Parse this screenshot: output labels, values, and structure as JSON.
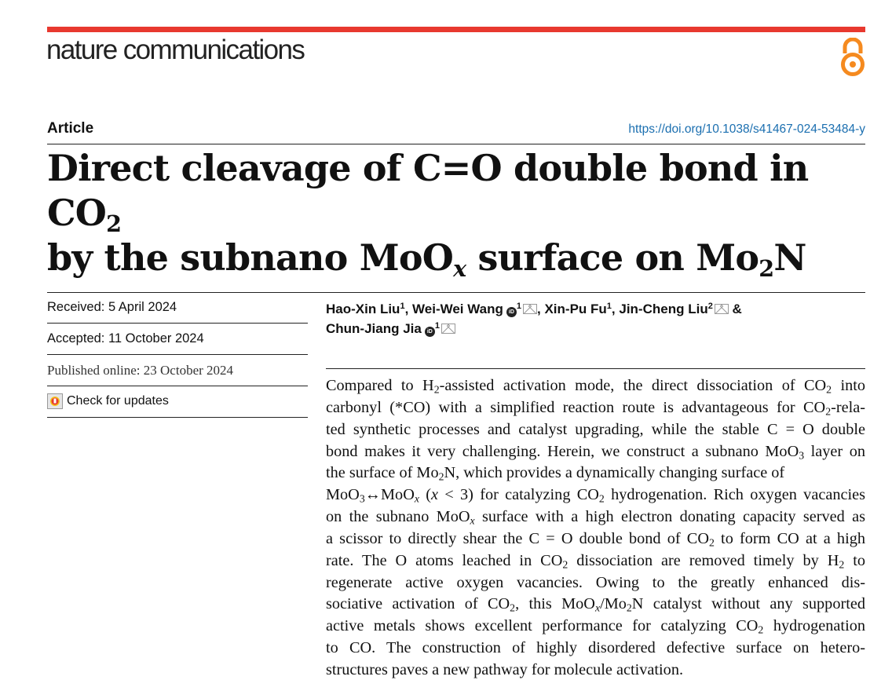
{
  "header": {
    "journal": "nature communications",
    "open_access_icon": "open-access-lock-icon",
    "brand_color": "#e8392f",
    "oa_color": "#f58a1f"
  },
  "article": {
    "type": "Article",
    "doi": "https://doi.org/10.1038/s41467-024-53484-y",
    "title_lines": [
      [
        "Direct cleavage of C=O double bond in CO",
        {
          "sub": "2"
        }
      ],
      [
        "by the subnano MoO",
        {
          "subi": "x"
        },
        " surface on Mo",
        {
          "sub": "2"
        },
        "N"
      ]
    ]
  },
  "meta": {
    "received": "Received: 5 April 2024",
    "accepted": "Accepted: 11 October 2024",
    "published": "Published online: 23 October 2024",
    "check_updates": "Check for updates"
  },
  "authors": [
    {
      "name": "Hao-Xin Liu",
      "aff": "1",
      "orcid": false,
      "mail": false,
      "sep": ", "
    },
    {
      "name": "Wei-Wei Wang",
      "aff": "1",
      "orcid": true,
      "mail": true,
      "sep": ", "
    },
    {
      "name": "Xin-Pu Fu",
      "aff": "1",
      "orcid": false,
      "mail": false,
      "sep": ", "
    },
    {
      "name": "Jin-Cheng Liu",
      "aff": "2",
      "orcid": false,
      "mail": true,
      "sep": " & "
    },
    {
      "name": "Chun-Jiang Jia",
      "aff": "1",
      "orcid": true,
      "mail": true,
      "sep": ""
    }
  ],
  "abstract_lines": [
    [
      "Compared to H",
      {
        "sub": "2"
      },
      "-assisted activation mode, the direct dissociation of CO",
      {
        "sub": "2"
      },
      " into"
    ],
    [
      "carbonyl (*CO) with a simplified reaction route is advantageous for CO",
      {
        "sub": "2"
      },
      "-rela-"
    ],
    [
      "ted synthetic processes and catalyst upgrading, while the stable C = O double"
    ],
    [
      "bond makes it very challenging. Herein, we construct a subnano MoO",
      {
        "sub": "3"
      },
      " layer on"
    ],
    [
      "the surface of Mo",
      {
        "sub": "2"
      },
      "N, which provides a dynamically changing surface of"
    ],
    [
      "MoO",
      {
        "sub": "3"
      },
      "↔MoO",
      {
        "subi": "x"
      },
      " (",
      {
        "i": "x"
      },
      " < 3) for catalyzing CO",
      {
        "sub": "2"
      },
      " hydrogenation. Rich oxygen vacancies"
    ],
    [
      "on the subnano MoO",
      {
        "subi": "x"
      },
      " surface with a high electron donating capacity served as"
    ],
    [
      "a scissor to directly shear the C = O double bond of CO",
      {
        "sub": "2"
      },
      " to form CO at a high"
    ],
    [
      "rate. The O atoms leached in CO",
      {
        "sub": "2"
      },
      " dissociation are removed timely by H",
      {
        "sub": "2"
      },
      " to"
    ],
    [
      "regenerate active oxygen vacancies. Owing to the greatly enhanced dis-"
    ],
    [
      "sociative activation of CO",
      {
        "sub": "2"
      },
      ", this MoO",
      {
        "subi": "x"
      },
      "/Mo",
      {
        "sub": "2"
      },
      "N catalyst without any supported"
    ],
    [
      "active metals shows excellent performance for catalyzing CO",
      {
        "sub": "2"
      },
      " hydrogenation"
    ],
    [
      "to CO. The construction of highly disordered defective surface on hetero-"
    ],
    [
      "structures paves a new pathway for molecule activation."
    ]
  ]
}
